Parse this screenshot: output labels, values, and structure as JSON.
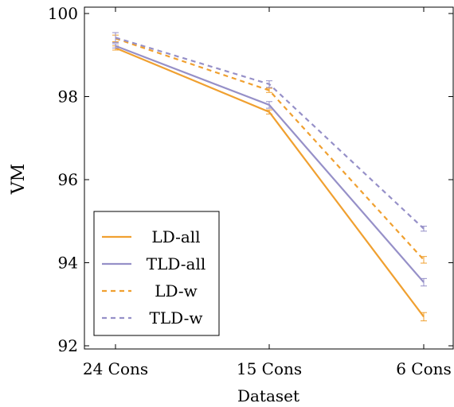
{
  "chart_data": {
    "type": "line",
    "title": "",
    "xlabel": "Dataset",
    "ylabel": "VM",
    "categories": [
      "24 Cons",
      "15 Cons",
      "6 Cons"
    ],
    "ylim": [
      92,
      100
    ],
    "yticks": [
      "92",
      "94",
      "96",
      "98",
      "100"
    ],
    "grid": false,
    "legend_position": "bottom-left",
    "series": [
      {
        "name": "LD-all",
        "values": [
          99.17,
          97.63,
          92.7
        ],
        "errors": [
          0.05,
          0.05,
          0.1
        ],
        "color": "#F0A030",
        "dash": "solid"
      },
      {
        "name": "TLD-all",
        "values": [
          99.22,
          97.8,
          93.53
        ],
        "errors": [
          0.05,
          0.08,
          0.09
        ],
        "color": "#9690C8",
        "dash": "solid"
      },
      {
        "name": "LD-w",
        "values": [
          99.4,
          98.15,
          94.07
        ],
        "errors": [
          0.08,
          0.05,
          0.08
        ],
        "color": "#F0A030",
        "dash": "dashed"
      },
      {
        "name": "TLD-w",
        "values": [
          99.42,
          98.3,
          94.82
        ],
        "errors": [
          0.12,
          0.08,
          0.06
        ],
        "color": "#9690C8",
        "dash": "dashed"
      }
    ]
  }
}
